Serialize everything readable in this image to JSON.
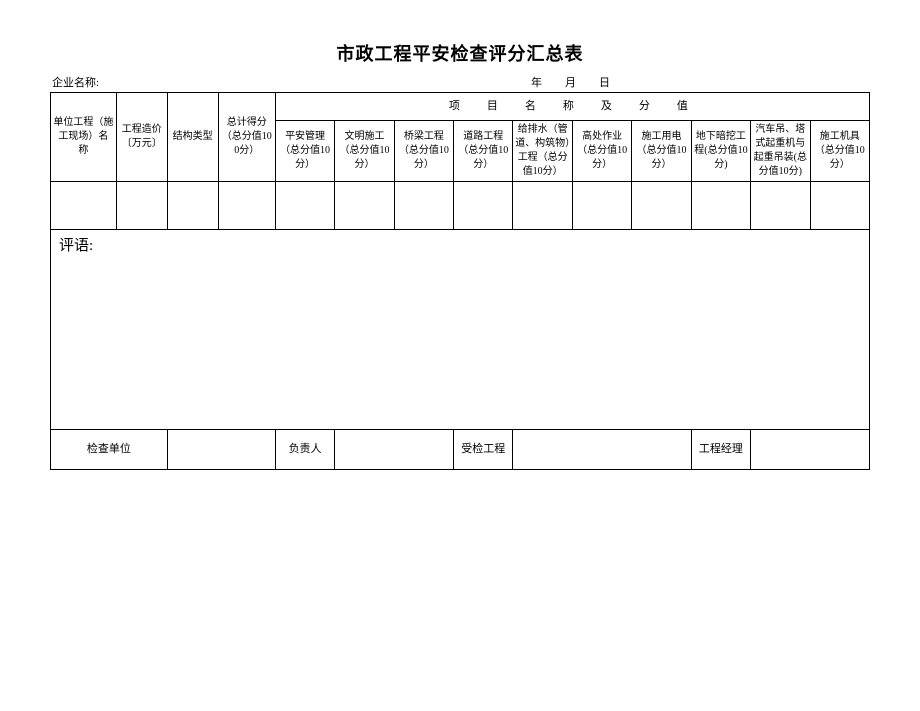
{
  "title": "市政工程平安检查评分汇总表",
  "meta": {
    "company_label": "企业名称:",
    "date_label": "年　月　日"
  },
  "headers": {
    "col1": "单位工程（施工现场）名　称",
    "col2": "工程造价〔万元〕",
    "col3": "结构类型",
    "col4": "总计得分（总分值100分）",
    "group": "项　目　名　称　及　分　值",
    "sub": {
      "s1": "平安管理（总分值10分）",
      "s2": "文明施工（总分值10分）",
      "s3": "桥梁工程（总分值10分）",
      "s4": "道路工程（总分值10分）",
      "s5": "给排水（管道、构筑物）工程（总分值10分）",
      "s6": "高处作业（总分值10分）",
      "s7": "施工用电（总分值10分）",
      "s8": "地下暗挖工程(总分值10分)",
      "s9": "汽车吊、塔式起重机与起重吊装(总分值10分)",
      "s10": "施工机具（总分值10分）"
    }
  },
  "comment_label": "评语:",
  "footer": {
    "f1": "检查单位",
    "f2": "负责人",
    "f3": "受检工程",
    "f4": "工程经理"
  }
}
